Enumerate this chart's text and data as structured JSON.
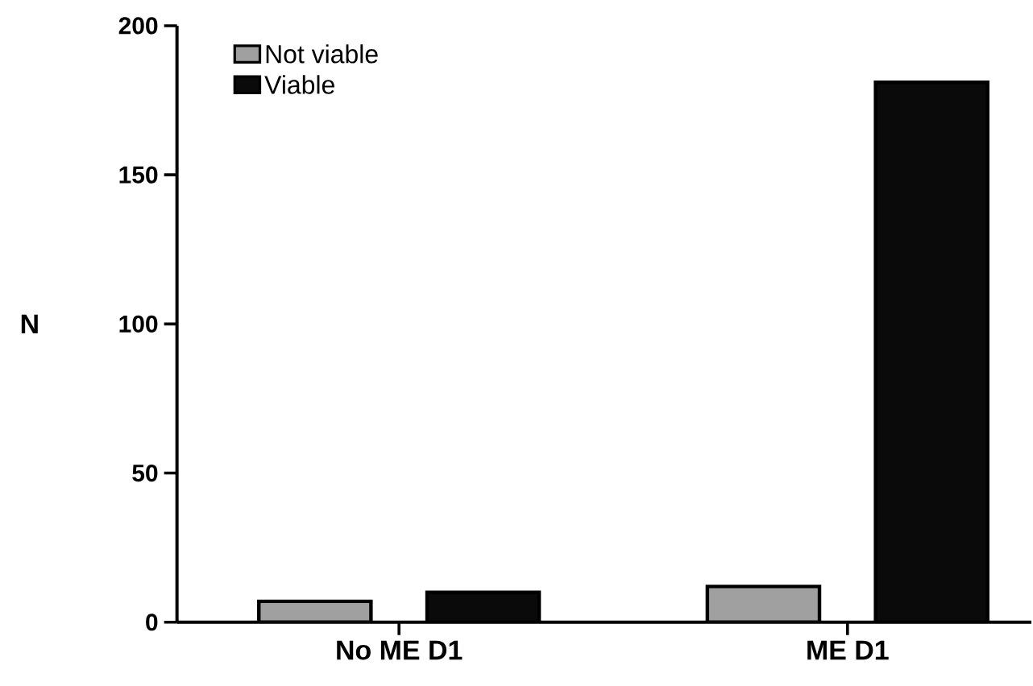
{
  "chart_data": {
    "type": "bar",
    "ylabel": "N",
    "categories": [
      "No ME D1",
      "ME D1"
    ],
    "series": [
      {
        "name": "Not viable",
        "color": "#a0a0a0",
        "values": [
          7,
          12
        ]
      },
      {
        "name": "Viable",
        "color": "#0a0a0a",
        "values": [
          10,
          181
        ]
      }
    ],
    "ylim": [
      0,
      200
    ],
    "yticks": [
      0,
      50,
      100,
      150,
      200
    ],
    "grid": false,
    "legend": "top left"
  }
}
